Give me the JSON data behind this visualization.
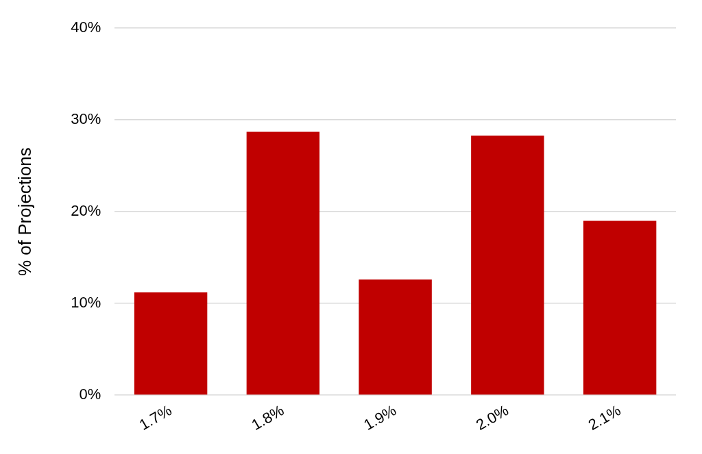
{
  "chart_data": {
    "type": "bar",
    "ylabel": "% of Projections",
    "categories": [
      "1.7%",
      "1.8%",
      "1.9%",
      "2.0%",
      "2.1%"
    ],
    "values": [
      11.2,
      28.7,
      12.6,
      28.3,
      19.0
    ],
    "color": "#c00000",
    "ylim": [
      0,
      40
    ],
    "yticks": [
      {
        "value": 0,
        "label": "0%"
      },
      {
        "value": 10,
        "label": "10%"
      },
      {
        "value": 20,
        "label": "20%"
      },
      {
        "value": 30,
        "label": "30%"
      },
      {
        "value": 40,
        "label": "40%"
      }
    ],
    "grid": "y",
    "legend": false
  }
}
